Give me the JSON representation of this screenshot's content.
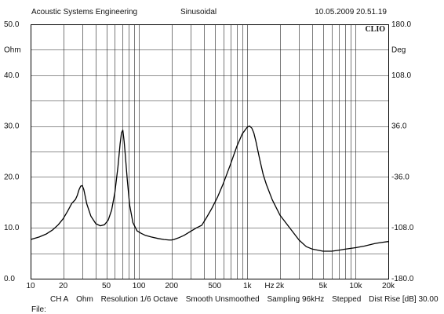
{
  "header": {
    "company": "Acoustic Systems Engineering",
    "signal": "Sinusoidal",
    "timestamp": "10.05.2009 20.51.19"
  },
  "brand": "CLIO",
  "footer": {
    "channel": "CH A",
    "unit": "Ohm",
    "resolution": "Resolution 1/6 Octave",
    "smooth": "Smooth Unsmoothed",
    "sampling": "Sampling 96kHz",
    "stepped": "Stepped",
    "dist_rise": "Dist Rise [dB] 30.00"
  },
  "file_label": "File:",
  "chart_data": {
    "type": "line",
    "xscale": "log",
    "xlim": [
      10,
      20000
    ],
    "ylim": [
      0,
      50
    ],
    "y2lim": [
      -180,
      180
    ],
    "grid": true,
    "xlabel": "Hz",
    "ylabel": "Ohm",
    "y2label": "Deg",
    "x_ticks": [
      {
        "v": 10,
        "label": "10"
      },
      {
        "v": 20,
        "label": "20"
      },
      {
        "v": 50,
        "label": "50"
      },
      {
        "v": 100,
        "label": "100"
      },
      {
        "v": 200,
        "label": "200"
      },
      {
        "v": 500,
        "label": "500"
      },
      {
        "v": 1000,
        "label": "1k"
      },
      {
        "v": 2000,
        "label": "2k"
      },
      {
        "v": 5000,
        "label": "5k"
      },
      {
        "v": 10000,
        "label": "10k"
      },
      {
        "v": 20000,
        "label": "20k"
      }
    ],
    "y_ticks": [
      {
        "v": 0,
        "label": "0.0"
      },
      {
        "v": 10,
        "label": "10.0"
      },
      {
        "v": 20,
        "label": "20.0"
      },
      {
        "v": 30,
        "label": "30.0"
      },
      {
        "v": 40,
        "label": "40.0"
      },
      {
        "v": 50,
        "label": "50.0"
      }
    ],
    "y2_ticks": [
      {
        "v": -180,
        "label": "-180.0"
      },
      {
        "v": -108,
        "label": "-108.0"
      },
      {
        "v": -36,
        "label": "-36.0"
      },
      {
        "v": 36,
        "label": "36.0"
      },
      {
        "v": 108,
        "label": "108.0"
      },
      {
        "v": 180,
        "label": "180.0"
      }
    ],
    "series": [
      {
        "color": "#000000",
        "x": [
          10,
          12,
          14,
          16,
          18,
          20,
          22,
          24,
          25,
          26,
          27,
          28,
          29,
          30,
          31,
          33,
          36,
          40,
          44,
          48,
          52,
          56,
          60,
          64,
          67,
          69,
          71,
          73,
          75,
          78,
          82,
          88,
          96,
          105,
          115,
          130,
          150,
          170,
          190,
          200,
          210,
          230,
          260,
          300,
          340,
          380,
          420,
          470,
          530,
          600,
          700,
          800,
          900,
          1000,
          1050,
          1100,
          1150,
          1200,
          1300,
          1400,
          1500,
          1700,
          2000,
          2500,
          3000,
          3500,
          4000,
          4500,
          5000,
          6000,
          7000,
          8000,
          10000,
          12000,
          15000,
          17000,
          20000
        ],
        "values": [
          7.7,
          8.2,
          8.8,
          9.6,
          10.6,
          11.8,
          13.3,
          14.8,
          15.2,
          15.6,
          16.4,
          17.5,
          18.2,
          18.3,
          17.5,
          14.7,
          12.3,
          10.8,
          10.4,
          10.6,
          11.5,
          13.5,
          17.0,
          22.0,
          26.5,
          28.7,
          29.2,
          27.0,
          24.0,
          19.5,
          14.5,
          11.0,
          9.4,
          8.9,
          8.5,
          8.2,
          7.9,
          7.7,
          7.6,
          7.6,
          7.7,
          8.0,
          8.5,
          9.3,
          10.0,
          10.5,
          12.0,
          13.8,
          16.0,
          18.7,
          22.5,
          26.0,
          28.5,
          29.8,
          30.0,
          29.6,
          28.6,
          27.0,
          23.5,
          20.5,
          18.5,
          15.5,
          12.5,
          9.8,
          7.6,
          6.3,
          5.8,
          5.6,
          5.4,
          5.4,
          5.6,
          5.8,
          6.1,
          6.4,
          6.9,
          7.1,
          7.3
        ]
      }
    ]
  }
}
